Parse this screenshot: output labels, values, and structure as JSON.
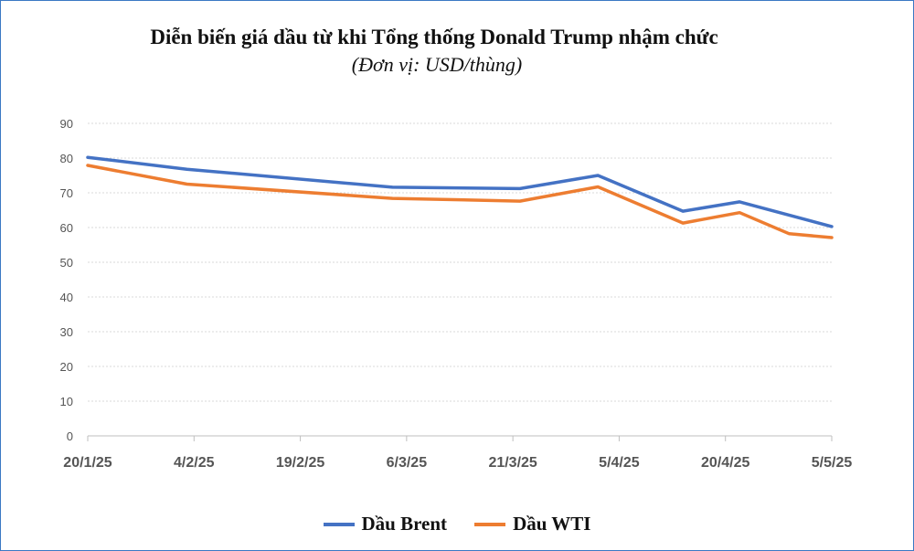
{
  "title": "Diễn biến giá dầu từ khi Tổng thống Donald Trump nhậm chức",
  "subtitle": "(Đơn vị: USD/thùng)",
  "chart_data": {
    "type": "line",
    "title": "Diễn biến giá dầu từ khi Tổng thống Donald Trump nhậm chức",
    "subtitle": "(Đơn vị: USD/thùng)",
    "xlabel": "",
    "ylabel": "",
    "x_tick_labels": [
      "20/1/25",
      "4/2/25",
      "19/2/25",
      "6/3/25",
      "21/3/25",
      "5/4/25",
      "20/4/25",
      "5/5/25"
    ],
    "x_range": [
      "2025-01-20",
      "2025-05-05"
    ],
    "ylim": [
      0,
      90
    ],
    "y_ticks": [
      0,
      10,
      20,
      30,
      40,
      50,
      60,
      70,
      80,
      90
    ],
    "grid": true,
    "legend_position": "bottom-center",
    "series": [
      {
        "name": "Dầu Brent",
        "color": "#4472c4",
        "x": [
          "2025-01-20",
          "2025-02-03",
          "2025-03-04",
          "2025-03-22",
          "2025-04-02",
          "2025-04-14",
          "2025-04-22",
          "2025-05-05"
        ],
        "y": [
          80.2,
          76.8,
          71.6,
          71.2,
          75,
          64.7,
          67.4,
          60.3
        ]
      },
      {
        "name": "Dầu WTI",
        "color": "#ed7d31",
        "x": [
          "2025-01-20",
          "2025-02-03",
          "2025-03-04",
          "2025-03-22",
          "2025-04-02",
          "2025-04-14",
          "2025-04-22",
          "2025-04-29",
          "2025-05-05"
        ],
        "y": [
          77.9,
          72.5,
          68.4,
          67.6,
          71.7,
          61.3,
          64.3,
          58.2,
          57.1
        ]
      }
    ]
  }
}
